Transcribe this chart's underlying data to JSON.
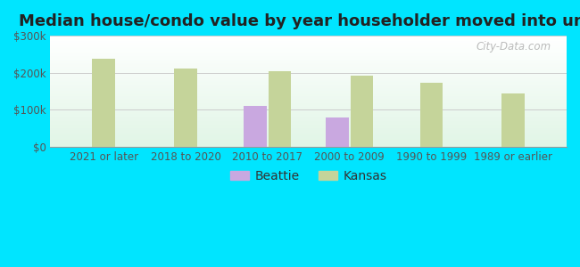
{
  "title": "Median house/condo value by year householder moved into unit",
  "categories": [
    "2021 or later",
    "2018 to 2020",
    "2010 to 2017",
    "2000 to 2009",
    "1990 to 1999",
    "1989 or earlier"
  ],
  "beattie_values": [
    null,
    null,
    110000,
    80000,
    null,
    null
  ],
  "kansas_values": [
    237000,
    212000,
    204000,
    193000,
    173000,
    145000
  ],
  "beattie_color": "#c9a8e0",
  "kansas_color": "#c5d49a",
  "outer_bg_color": "#00e5ff",
  "ylim": [
    0,
    300000
  ],
  "yticks": [
    0,
    100000,
    200000,
    300000
  ],
  "ytick_labels": [
    "$0",
    "$100k",
    "$200k",
    "$300k"
  ],
  "bar_width": 0.28,
  "bar_gap": 0.02,
  "watermark": "City-Data.com",
  "legend_beattie": "Beattie",
  "legend_kansas": "Kansas",
  "title_fontsize": 13,
  "tick_fontsize": 8.5,
  "legend_fontsize": 10
}
